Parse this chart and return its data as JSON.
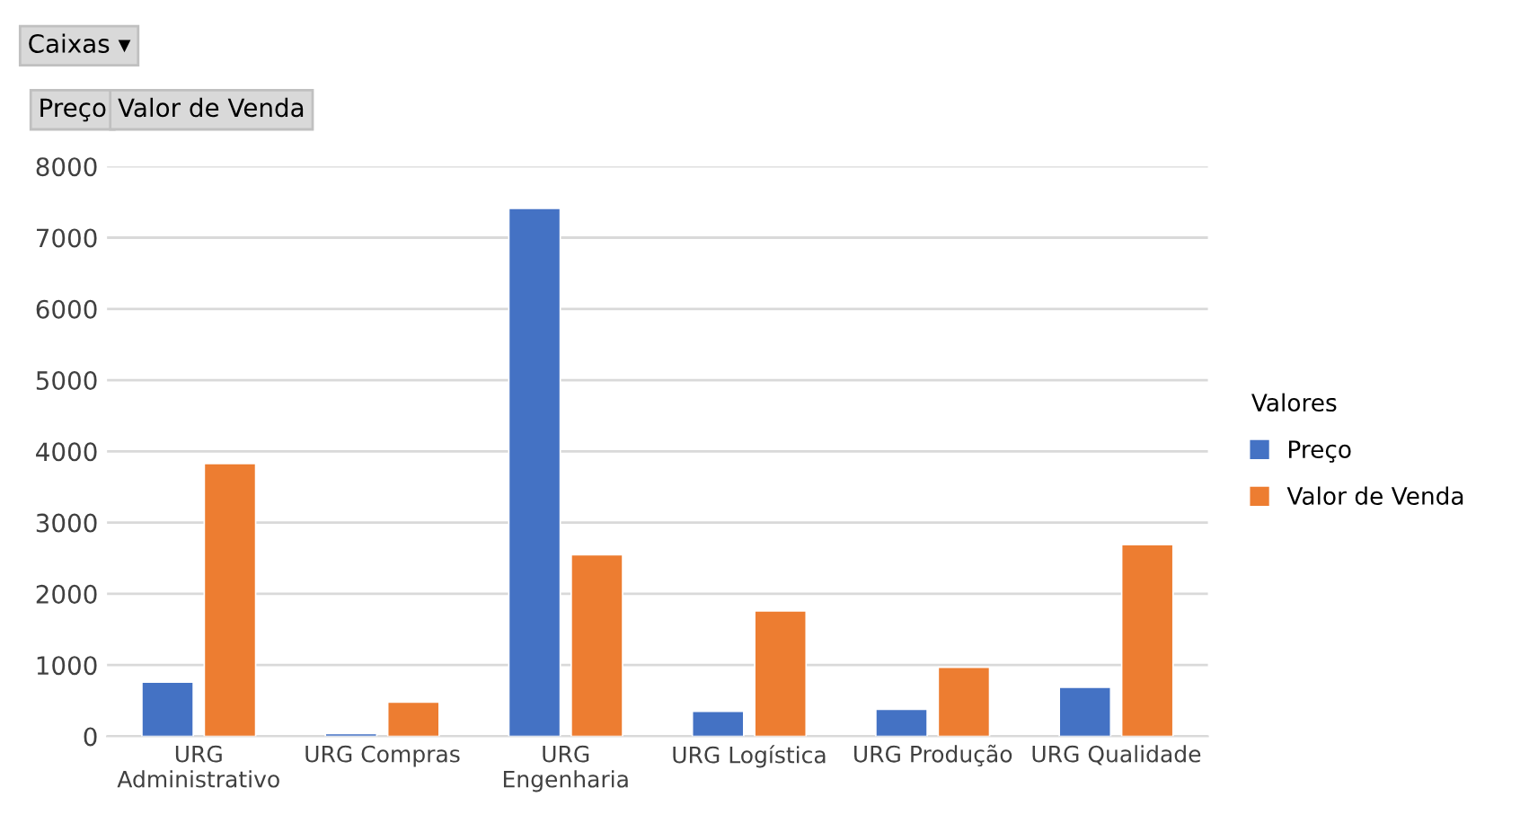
{
  "chart_data": {
    "type": "bar",
    "categories": [
      "URG Administrativo",
      "URG Compras",
      "URG Engenharia",
      "URG Logística",
      "URG Produção",
      "URG Qualidade"
    ],
    "series": [
      {
        "name": "Preço",
        "color": "#4472c4",
        "values": [
          760,
          40,
          7410,
          350,
          380,
          690
        ]
      },
      {
        "name": "Valor de Venda",
        "color": "#ed7d31",
        "values": [
          3830,
          480,
          2550,
          1760,
          970,
          2690
        ]
      }
    ],
    "ylim": [
      0,
      8000
    ],
    "yticks": [
      0,
      1000,
      2000,
      3000,
      4000,
      5000,
      6000,
      7000,
      8000
    ],
    "grid": "y",
    "legend": "right",
    "legend_title": "Valores",
    "annotations": [
      "Caixas ▾",
      "Preço",
      "Valor de Venda"
    ]
  }
}
